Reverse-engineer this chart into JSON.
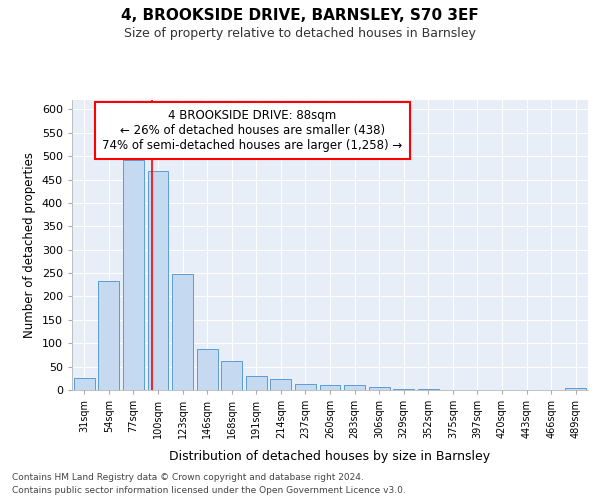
{
  "title1": "4, BROOKSIDE DRIVE, BARNSLEY, S70 3EF",
  "title2": "Size of property relative to detached houses in Barnsley",
  "xlabel": "Distribution of detached houses by size in Barnsley",
  "ylabel": "Number of detached properties",
  "categories": [
    "31sqm",
    "54sqm",
    "77sqm",
    "100sqm",
    "123sqm",
    "146sqm",
    "168sqm",
    "191sqm",
    "214sqm",
    "237sqm",
    "260sqm",
    "283sqm",
    "306sqm",
    "329sqm",
    "352sqm",
    "375sqm",
    "397sqm",
    "420sqm",
    "443sqm",
    "466sqm",
    "489sqm"
  ],
  "values": [
    26,
    233,
    491,
    469,
    249,
    88,
    63,
    30,
    24,
    13,
    11,
    10,
    6,
    3,
    2,
    1,
    1,
    1,
    0,
    0,
    4
  ],
  "bar_color": "#c5d9f0",
  "bar_edge_color": "#5b9bd5",
  "red_line_x": 2.75,
  "ylim": [
    0,
    620
  ],
  "yticks": [
    0,
    50,
    100,
    150,
    200,
    250,
    300,
    350,
    400,
    450,
    500,
    550,
    600
  ],
  "annotation_title": "4 BROOKSIDE DRIVE: 88sqm",
  "annotation_line1": "← 26% of detached houses are smaller (438)",
  "annotation_line2": "74% of semi-detached houses are larger (1,258) →",
  "footnote1": "Contains HM Land Registry data © Crown copyright and database right 2024.",
  "footnote2": "Contains public sector information licensed under the Open Government Licence v3.0.",
  "background_color": "#e8eef8"
}
